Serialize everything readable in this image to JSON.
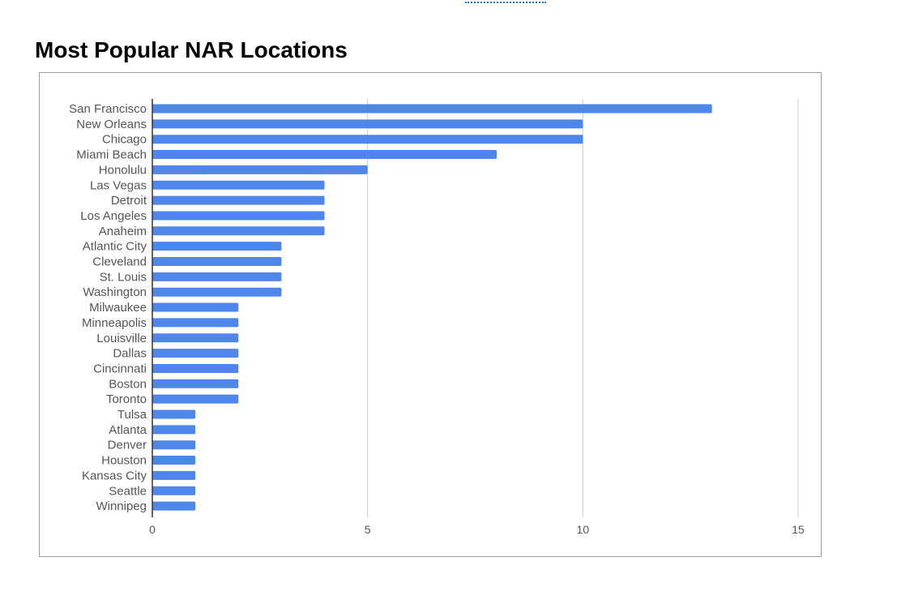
{
  "page": {
    "title": "Most Popular NAR Locations"
  },
  "colors": {
    "bar": "#4f86ec",
    "grid": "#cccccc",
    "axis": "#333333",
    "text": "#555555",
    "frame": "#9e9e9e"
  },
  "chart_data": {
    "type": "bar",
    "orientation": "horizontal",
    "title": "Most Popular NAR Locations",
    "xlabel": "",
    "ylabel": "",
    "xlim": [
      0,
      15
    ],
    "x_ticks": [
      0,
      5,
      10,
      15
    ],
    "grid": true,
    "legend": "none",
    "categories": [
      "San Francisco",
      "New Orleans",
      "Chicago",
      "Miami Beach",
      "Honolulu",
      "Las Vegas",
      "Detroit",
      "Los Angeles",
      "Anaheim",
      "Atlantic City",
      "Cleveland",
      "St. Louis",
      "Washington",
      "Milwaukee",
      "Minneapolis",
      "Louisville",
      "Dallas",
      "Cincinnati",
      "Boston",
      "Toronto",
      "Tulsa",
      "Atlanta",
      "Denver",
      "Houston",
      "Kansas City",
      "Seattle",
      "Winnipeg"
    ],
    "values": [
      13,
      10,
      10,
      8,
      5,
      4,
      4,
      4,
      4,
      3,
      3,
      3,
      3,
      2,
      2,
      2,
      2,
      2,
      2,
      2,
      1,
      1,
      1,
      1,
      1,
      1,
      1
    ]
  }
}
